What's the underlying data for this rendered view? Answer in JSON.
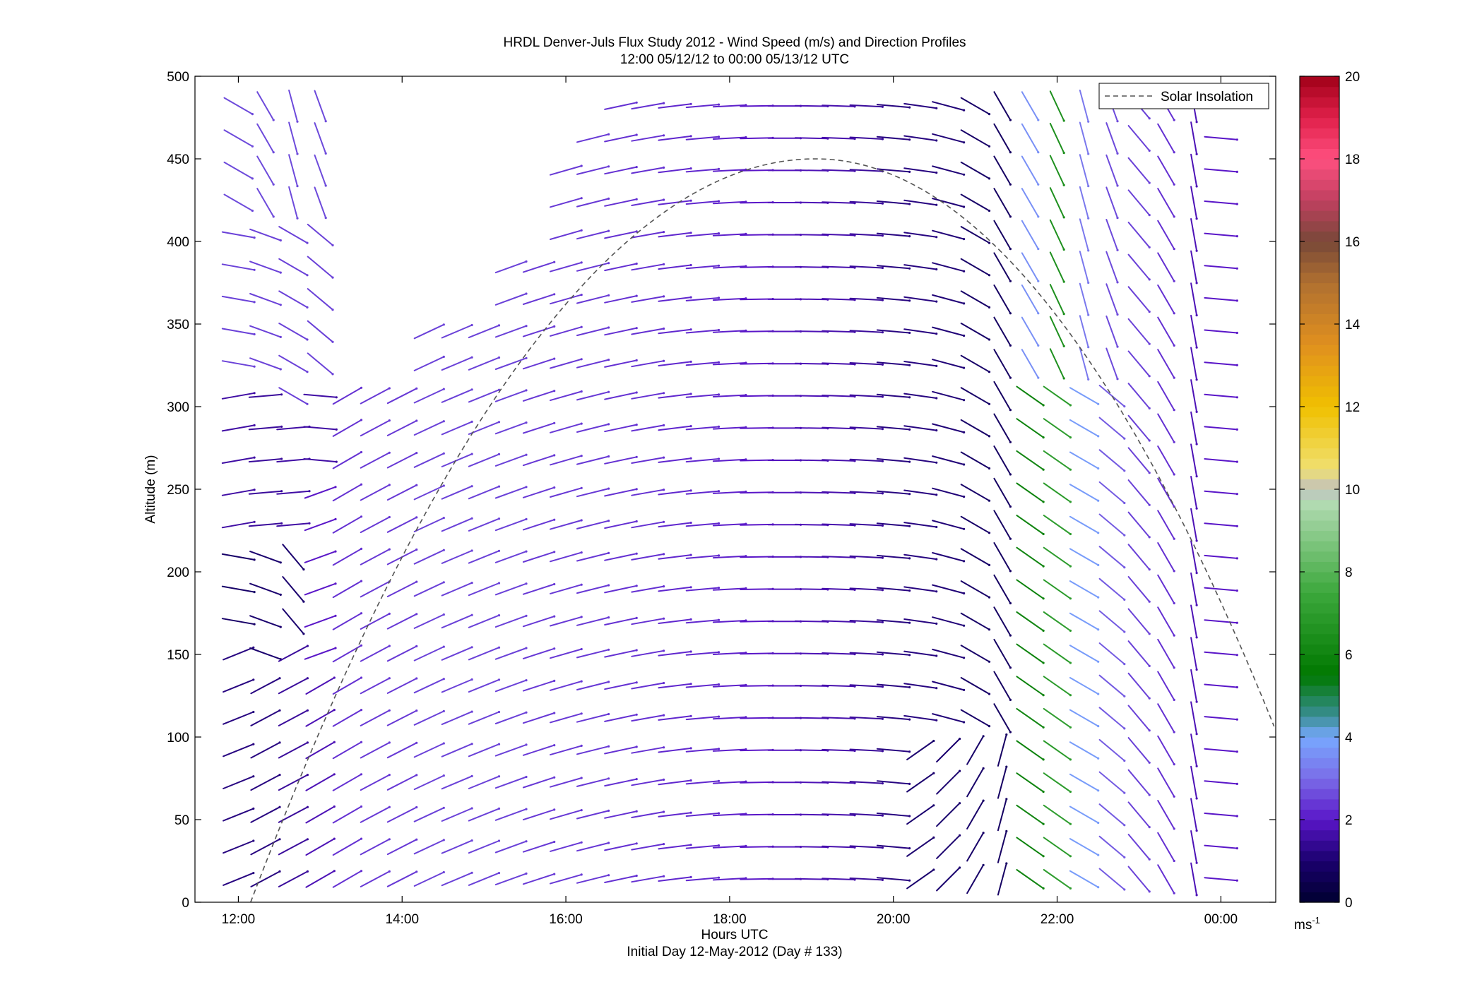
{
  "chart_data": {
    "type": "wind-barb-profile",
    "title": "HRDL Denver-Juls Flux Study 2012 - Wind Speed (m/s) and Direction Profiles",
    "subtitle": "12:00 05/12/12 to 00:00 05/13/12  UTC",
    "xlabel": "Hours UTC",
    "xlabel2": "Initial Day 12-May-2012 (Day # 133)",
    "ylabel": "Altitude (m)",
    "xlim_hours": [
      11.47,
      24.67
    ],
    "ylim": [
      0,
      500
    ],
    "x_ticks": [
      {
        "value": 12,
        "label": "12:00"
      },
      {
        "value": 14,
        "label": "14:00"
      },
      {
        "value": 16,
        "label": "16:00"
      },
      {
        "value": 18,
        "label": "18:00"
      },
      {
        "value": 20,
        "label": "20:00"
      },
      {
        "value": 22,
        "label": "22:00"
      },
      {
        "value": 24,
        "label": "00:00"
      }
    ],
    "y_ticks": [
      0,
      50,
      100,
      150,
      200,
      250,
      300,
      350,
      400,
      450,
      500
    ],
    "legend": {
      "placement": "top-right",
      "entries": [
        {
          "name": "Solar Insolation",
          "style": "dashed",
          "color": "#555555"
        }
      ]
    },
    "solar_insolation": {
      "sunrise_hour": 12.15,
      "peak_hour": 19.05,
      "peak_altitude": 450,
      "end_hour": 24.67,
      "end_altitude": 104
    },
    "colorbar": {
      "range": [
        0,
        20
      ],
      "ticks": [
        0,
        2,
        4,
        6,
        8,
        10,
        12,
        14,
        16,
        18,
        20
      ],
      "unit_label": "ms",
      "unit_exponent": "-1",
      "stops": [
        {
          "v": 0,
          "c": "#000030"
        },
        {
          "v": 1,
          "c": "#1a006e"
        },
        {
          "v": 2,
          "c": "#5a16c8"
        },
        {
          "v": 3,
          "c": "#7a6ce8"
        },
        {
          "v": 4,
          "c": "#78a8ff"
        },
        {
          "v": 4.5,
          "c": "#3a8e96"
        },
        {
          "v": 5.5,
          "c": "#007800"
        },
        {
          "v": 7.5,
          "c": "#3ca83c"
        },
        {
          "v": 9.7,
          "c": "#b4dcb4"
        },
        {
          "v": 10,
          "c": "#c0c0c0"
        },
        {
          "v": 10.5,
          "c": "#f0e070"
        },
        {
          "v": 12,
          "c": "#f0c000"
        },
        {
          "v": 13.5,
          "c": "#e0901e"
        },
        {
          "v": 15,
          "c": "#b07030"
        },
        {
          "v": 16,
          "c": "#784838"
        },
        {
          "v": 17,
          "c": "#c04060"
        },
        {
          "v": 18,
          "c": "#ff5080"
        },
        {
          "v": 19,
          "c": "#e0204a"
        },
        {
          "v": 20,
          "c": "#a00018"
        }
      ]
    },
    "profiles": [
      {
        "t": 12.0,
        "zmax": 500,
        "blocks": [
          [
            0,
            150,
            68,
            1.2
          ],
          [
            155,
            200,
            100,
            0.9
          ],
          [
            210,
            300,
            80,
            1.6
          ],
          [
            310,
            400,
            100,
            2.5
          ],
          [
            410,
            500,
            120,
            2.6
          ]
        ]
      },
      {
        "t": 12.33,
        "zmax": 500,
        "blocks": [
          [
            0,
            140,
            62,
            1.2
          ],
          [
            150,
            210,
            110,
            1.0
          ],
          [
            220,
            300,
            85,
            1.5
          ],
          [
            310,
            400,
            110,
            2.5
          ],
          [
            410,
            500,
            150,
            2.6
          ]
        ]
      },
      {
        "t": 12.67,
        "zmax": 500,
        "blocks": [
          [
            0,
            150,
            62,
            1.5
          ],
          [
            160,
            200,
            140,
            1.0
          ],
          [
            210,
            290,
            85,
            1.6
          ],
          [
            300,
            400,
            120,
            2.5
          ],
          [
            410,
            500,
            165,
            2.6
          ]
        ]
      },
      {
        "t": 13.0,
        "zmax": 500,
        "blocks": [
          [
            0,
            140,
            60,
            1.8
          ],
          [
            150,
            250,
            70,
            2.0
          ],
          [
            260,
            300,
            95,
            1.6
          ],
          [
            310,
            400,
            130,
            2.5
          ],
          [
            410,
            500,
            160,
            2.6
          ]
        ]
      },
      {
        "t": 13.33,
        "zmax": 320,
        "blocks": [
          [
            0,
            320,
            60,
            2.3
          ]
        ]
      },
      {
        "t": 13.67,
        "zmax": 320,
        "blocks": [
          [
            0,
            320,
            62,
            2.4
          ]
        ]
      },
      {
        "t": 14.0,
        "zmax": 320,
        "blocks": [
          [
            0,
            320,
            63,
            2.4
          ]
        ]
      },
      {
        "t": 14.33,
        "zmax": 350,
        "blocks": [
          [
            0,
            350,
            65,
            2.5
          ]
        ]
      },
      {
        "t": 14.67,
        "zmax": 350,
        "blocks": [
          [
            0,
            350,
            67,
            2.5
          ]
        ]
      },
      {
        "t": 15.0,
        "zmax": 350,
        "blocks": [
          [
            0,
            350,
            68,
            2.5
          ]
        ]
      },
      {
        "t": 15.33,
        "zmax": 400,
        "blocks": [
          [
            0,
            400,
            70,
            2.5
          ]
        ]
      },
      {
        "t": 15.67,
        "zmax": 400,
        "blocks": [
          [
            0,
            400,
            72,
            2.4
          ]
        ]
      },
      {
        "t": 16.0,
        "zmax": 450,
        "blocks": [
          [
            0,
            450,
            74,
            2.4
          ]
        ]
      },
      {
        "t": 16.33,
        "zmax": 475,
        "blocks": [
          [
            0,
            475,
            76,
            2.4
          ]
        ]
      },
      {
        "t": 16.67,
        "zmax": 500,
        "blocks": [
          [
            0,
            500,
            78,
            2.3
          ]
        ]
      },
      {
        "t": 17.0,
        "zmax": 500,
        "blocks": [
          [
            0,
            500,
            80,
            2.3
          ]
        ]
      },
      {
        "t": 17.33,
        "zmax": 500,
        "blocks": [
          [
            0,
            500,
            83,
            2.2
          ]
        ]
      },
      {
        "t": 17.67,
        "zmax": 500,
        "blocks": [
          [
            0,
            500,
            85,
            2.2
          ]
        ]
      },
      {
        "t": 18.0,
        "zmax": 500,
        "blocks": [
          [
            0,
            500,
            87,
            2.1
          ]
        ]
      },
      {
        "t": 18.33,
        "zmax": 500,
        "blocks": [
          [
            0,
            500,
            89,
            2.0
          ]
        ]
      },
      {
        "t": 18.67,
        "zmax": 500,
        "blocks": [
          [
            0,
            500,
            90,
            1.9
          ]
        ]
      },
      {
        "t": 19.0,
        "zmax": 500,
        "blocks": [
          [
            0,
            500,
            91,
            1.8
          ]
        ]
      },
      {
        "t": 19.33,
        "zmax": 500,
        "blocks": [
          [
            0,
            500,
            92,
            1.7
          ]
        ]
      },
      {
        "t": 19.67,
        "zmax": 500,
        "blocks": [
          [
            0,
            500,
            93,
            1.5
          ]
        ]
      },
      {
        "t": 20.0,
        "zmax": 500,
        "blocks": [
          [
            0,
            500,
            95,
            1.2
          ]
        ]
      },
      {
        "t": 20.33,
        "zmax": 500,
        "blocks": [
          [
            0,
            100,
            55,
            1.0
          ],
          [
            110,
            500,
            98,
            1.2
          ]
        ]
      },
      {
        "t": 20.67,
        "zmax": 500,
        "blocks": [
          [
            0,
            100,
            45,
            1.0
          ],
          [
            110,
            500,
            105,
            1.1
          ]
        ]
      },
      {
        "t": 21.0,
        "zmax": 500,
        "blocks": [
          [
            0,
            100,
            30,
            0.9
          ],
          [
            110,
            500,
            120,
            0.9
          ]
        ]
      },
      {
        "t": 21.33,
        "zmax": 500,
        "blocks": [
          [
            0,
            100,
            15,
            0.8
          ],
          [
            110,
            500,
            150,
            0.8
          ]
        ]
      },
      {
        "t": 21.67,
        "zmax": 500,
        "blocks": [
          [
            0,
            300,
            125,
            6.0
          ],
          [
            310,
            500,
            150,
            3.6
          ]
        ]
      },
      {
        "t": 22.0,
        "zmax": 500,
        "blocks": [
          [
            0,
            300,
            125,
            7.0
          ],
          [
            310,
            500,
            155,
            6.5
          ]
        ]
      },
      {
        "t": 22.33,
        "zmax": 500,
        "blocks": [
          [
            0,
            300,
            120,
            3.8
          ],
          [
            310,
            500,
            165,
            3.2
          ]
        ]
      },
      {
        "t": 22.67,
        "zmax": 500,
        "blocks": [
          [
            0,
            300,
            130,
            2.8
          ],
          [
            310,
            500,
            160,
            2.6
          ]
        ]
      },
      {
        "t": 23.0,
        "zmax": 500,
        "blocks": [
          [
            0,
            500,
            140,
            2.5
          ]
        ]
      },
      {
        "t": 23.33,
        "zmax": 500,
        "blocks": [
          [
            0,
            500,
            150,
            2.3
          ]
        ]
      },
      {
        "t": 23.67,
        "zmax": 500,
        "blocks": [
          [
            0,
            500,
            170,
            1.8
          ]
        ]
      },
      {
        "t": 24.0,
        "zmax": 500,
        "blocks": [
          [
            0,
            500,
            95,
            2.0
          ]
        ]
      }
    ]
  }
}
